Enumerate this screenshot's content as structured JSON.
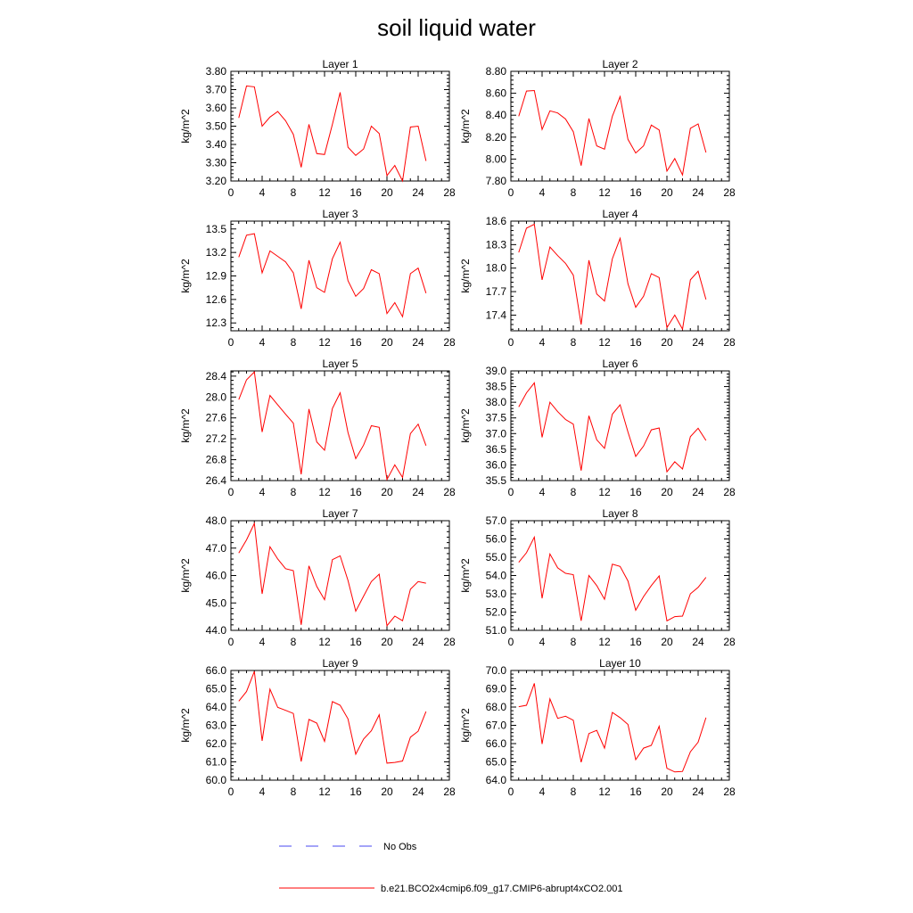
{
  "figure": {
    "title": "soil liquid water",
    "legend": [
      {
        "label": "No Obs",
        "color": "#4a4af0",
        "dash": "dashed"
      },
      {
        "label": "b.e21.BCO2x4cmip6.f09_g17.CMIP6-abrupt4xCO2.001",
        "color": "#ff0000",
        "dash": "solid"
      }
    ],
    "colors": {
      "series": "#ff0000",
      "no_obs": "#4a4af0",
      "axis": "#000000"
    }
  },
  "chart_data": [
    {
      "type": "line",
      "title": "Layer 1",
      "ylabel": "kg/m^2",
      "xlim": [
        0,
        28
      ],
      "xticks": [
        "0",
        "4",
        "8",
        "12",
        "16",
        "20",
        "24",
        "28"
      ],
      "ylim": [
        3.2,
        3.8
      ],
      "yticks": [
        "3.20",
        "3.30",
        "3.40",
        "3.50",
        "3.60",
        "3.70",
        "3.80"
      ],
      "x": [
        1,
        2,
        3,
        4,
        5,
        6,
        7,
        8,
        9,
        10,
        11,
        12,
        13,
        14,
        15,
        16,
        17,
        18,
        19,
        20,
        21,
        22,
        23,
        24,
        25
      ],
      "series": [
        {
          "name": "b.e21.BCO2x4cmip6.f09_g17.CMIP6-abrupt4xCO2.001",
          "values": [
            3.545,
            3.72,
            3.715,
            3.5,
            3.55,
            3.58,
            3.53,
            3.455,
            3.275,
            3.51,
            3.35,
            3.345,
            3.51,
            3.685,
            3.385,
            3.34,
            3.375,
            3.5,
            3.46,
            3.23,
            3.285,
            3.2,
            3.495,
            3.5,
            3.31
          ]
        }
      ]
    },
    {
      "type": "line",
      "title": "Layer 2",
      "ylabel": "kg/m^2",
      "xlim": [
        0,
        28
      ],
      "xticks": [
        "0",
        "4",
        "8",
        "12",
        "16",
        "20",
        "24",
        "28"
      ],
      "ylim": [
        7.8,
        8.8
      ],
      "yticks": [
        "7.80",
        "8.00",
        "8.20",
        "8.40",
        "8.60",
        "8.80"
      ],
      "x": [
        1,
        2,
        3,
        4,
        5,
        6,
        7,
        8,
        9,
        10,
        11,
        12,
        13,
        14,
        15,
        16,
        17,
        18,
        19,
        20,
        21,
        22,
        23,
        24,
        25
      ],
      "series": [
        {
          "name": "b.e21.BCO2x4cmip6.f09_g17.CMIP6-abrupt4xCO2.001",
          "values": [
            8.39,
            8.62,
            8.625,
            8.27,
            8.44,
            8.42,
            8.365,
            8.25,
            7.94,
            8.37,
            8.12,
            8.09,
            8.39,
            8.57,
            8.18,
            8.055,
            8.12,
            8.31,
            8.265,
            7.89,
            8.005,
            7.855,
            8.28,
            8.32,
            8.06
          ]
        }
      ]
    },
    {
      "type": "line",
      "title": "Layer 3",
      "ylabel": "kg/m^2",
      "xlim": [
        0,
        28
      ],
      "xticks": [
        "0",
        "4",
        "8",
        "12",
        "16",
        "20",
        "24",
        "28"
      ],
      "ylim": [
        12.2,
        13.6
      ],
      "yticks": [
        "12.3",
        "12.6",
        "12.9",
        "13.2",
        "13.5"
      ],
      "x": [
        1,
        2,
        3,
        4,
        5,
        6,
        7,
        8,
        9,
        10,
        11,
        12,
        13,
        14,
        15,
        16,
        17,
        18,
        19,
        20,
        21,
        22,
        23,
        24,
        25
      ],
      "series": [
        {
          "name": "b.e21.BCO2x4cmip6.f09_g17.CMIP6-abrupt4xCO2.001",
          "values": [
            13.14,
            13.42,
            13.44,
            12.94,
            13.22,
            13.15,
            13.08,
            12.94,
            12.48,
            13.1,
            12.75,
            12.69,
            13.12,
            13.33,
            12.84,
            12.64,
            12.74,
            12.98,
            12.93,
            12.42,
            12.56,
            12.38,
            12.93,
            13.0,
            12.68
          ]
        }
      ]
    },
    {
      "type": "line",
      "title": "Layer 4",
      "ylabel": "kg/m^2",
      "xlim": [
        0,
        28
      ],
      "xticks": [
        "0",
        "4",
        "8",
        "12",
        "16",
        "20",
        "24",
        "28"
      ],
      "ylim": [
        17.2,
        18.6
      ],
      "yticks": [
        "17.4",
        "17.7",
        "18.0",
        "18.3",
        "18.6"
      ],
      "x": [
        1,
        2,
        3,
        4,
        5,
        6,
        7,
        8,
        9,
        10,
        11,
        12,
        13,
        14,
        15,
        16,
        17,
        18,
        19,
        20,
        21,
        22,
        23,
        24,
        25
      ],
      "series": [
        {
          "name": "b.e21.BCO2x4cmip6.f09_g17.CMIP6-abrupt4xCO2.001",
          "values": [
            18.2,
            18.51,
            18.56,
            17.85,
            18.27,
            18.16,
            18.06,
            17.91,
            17.28,
            18.1,
            17.67,
            17.58,
            18.12,
            18.38,
            17.8,
            17.5,
            17.64,
            17.93,
            17.88,
            17.24,
            17.4,
            17.22,
            17.85,
            17.96,
            17.6
          ]
        }
      ]
    },
    {
      "type": "line",
      "title": "Layer 5",
      "ylabel": "kg/m^2",
      "xlim": [
        0,
        28
      ],
      "xticks": [
        "0",
        "4",
        "8",
        "12",
        "16",
        "20",
        "24",
        "28"
      ],
      "ylim": [
        26.4,
        28.5
      ],
      "yticks": [
        "26.4",
        "26.8",
        "27.2",
        "27.6",
        "28.0",
        "28.4"
      ],
      "x": [
        1,
        2,
        3,
        4,
        5,
        6,
        7,
        8,
        9,
        10,
        11,
        12,
        13,
        14,
        15,
        16,
        17,
        18,
        19,
        20,
        21,
        22,
        23,
        24,
        25
      ],
      "series": [
        {
          "name": "b.e21.BCO2x4cmip6.f09_g17.CMIP6-abrupt4xCO2.001",
          "values": [
            27.95,
            28.33,
            28.48,
            27.33,
            28.03,
            27.85,
            27.67,
            27.5,
            26.52,
            27.77,
            27.14,
            26.98,
            27.78,
            28.08,
            27.32,
            26.82,
            27.08,
            27.45,
            27.42,
            26.42,
            26.7,
            26.46,
            27.3,
            27.48,
            27.07
          ]
        }
      ]
    },
    {
      "type": "line",
      "title": "Layer 6",
      "ylabel": "kg/m^2",
      "xlim": [
        0,
        28
      ],
      "xticks": [
        "0",
        "4",
        "8",
        "12",
        "16",
        "20",
        "24",
        "28"
      ],
      "ylim": [
        35.5,
        39.0
      ],
      "yticks": [
        "35.5",
        "36.0",
        "36.5",
        "37.0",
        "37.5",
        "38.0",
        "38.5",
        "39.0"
      ],
      "x": [
        1,
        2,
        3,
        4,
        5,
        6,
        7,
        8,
        9,
        10,
        11,
        12,
        13,
        14,
        15,
        16,
        17,
        18,
        19,
        20,
        21,
        22,
        23,
        24,
        25
      ],
      "series": [
        {
          "name": "b.e21.BCO2x4cmip6.f09_g17.CMIP6-abrupt4xCO2.001",
          "values": [
            37.85,
            38.3,
            38.62,
            36.88,
            38.0,
            37.7,
            37.45,
            37.3,
            35.82,
            37.57,
            36.8,
            36.53,
            37.62,
            37.92,
            37.05,
            36.27,
            36.6,
            37.12,
            37.18,
            35.78,
            36.1,
            35.87,
            36.9,
            37.17,
            36.78
          ]
        }
      ]
    },
    {
      "type": "line",
      "title": "Layer 7",
      "ylabel": "kg/m^2",
      "xlim": [
        0,
        28
      ],
      "xticks": [
        "0",
        "4",
        "8",
        "12",
        "16",
        "20",
        "24",
        "28"
      ],
      "ylim": [
        44.0,
        48.0
      ],
      "yticks": [
        "44.0",
        "45.0",
        "46.0",
        "47.0",
        "48.0"
      ],
      "x": [
        1,
        2,
        3,
        4,
        5,
        6,
        7,
        8,
        9,
        10,
        11,
        12,
        13,
        14,
        15,
        16,
        17,
        18,
        19,
        20,
        21,
        22,
        23,
        24,
        25
      ],
      "series": [
        {
          "name": "b.e21.BCO2x4cmip6.f09_g17.CMIP6-abrupt4xCO2.001",
          "values": [
            46.82,
            47.3,
            47.9,
            45.33,
            47.05,
            46.6,
            46.25,
            46.18,
            44.2,
            46.35,
            45.6,
            45.12,
            46.58,
            46.72,
            45.82,
            44.7,
            45.25,
            45.78,
            46.05,
            44.17,
            44.52,
            44.35,
            45.5,
            45.78,
            45.72
          ]
        }
      ]
    },
    {
      "type": "line",
      "title": "Layer 8",
      "ylabel": "kg/m^2",
      "xlim": [
        0,
        28
      ],
      "xticks": [
        "0",
        "4",
        "8",
        "12",
        "16",
        "20",
        "24",
        "28"
      ],
      "ylim": [
        51.0,
        57.0
      ],
      "yticks": [
        "51.0",
        "52.0",
        "53.0",
        "54.0",
        "55.0",
        "56.0",
        "57.0"
      ],
      "x": [
        1,
        2,
        3,
        4,
        5,
        6,
        7,
        8,
        9,
        10,
        11,
        12,
        13,
        14,
        15,
        16,
        17,
        18,
        19,
        20,
        21,
        22,
        23,
        24,
        25
      ],
      "series": [
        {
          "name": "b.e21.BCO2x4cmip6.f09_g17.CMIP6-abrupt4xCO2.001",
          "values": [
            54.72,
            55.25,
            56.1,
            52.75,
            55.18,
            54.42,
            54.12,
            54.05,
            51.52,
            54.0,
            53.45,
            52.7,
            54.62,
            54.5,
            53.7,
            52.1,
            52.85,
            53.45,
            53.98,
            51.52,
            51.75,
            51.78,
            53.0,
            53.35,
            53.9
          ]
        }
      ]
    },
    {
      "type": "line",
      "title": "Layer 9",
      "ylabel": "kg/m^2",
      "xlim": [
        0,
        28
      ],
      "xticks": [
        "0",
        "4",
        "8",
        "12",
        "16",
        "20",
        "24",
        "28"
      ],
      "ylim": [
        60.0,
        66.0
      ],
      "yticks": [
        "60.0",
        "61.0",
        "62.0",
        "63.0",
        "64.0",
        "65.0",
        "66.0"
      ],
      "x": [
        1,
        2,
        3,
        4,
        5,
        6,
        7,
        8,
        9,
        10,
        11,
        12,
        13,
        14,
        15,
        16,
        17,
        18,
        19,
        20,
        21,
        22,
        23,
        24,
        25
      ],
      "series": [
        {
          "name": "b.e21.BCO2x4cmip6.f09_g17.CMIP6-abrupt4xCO2.001",
          "values": [
            64.32,
            64.85,
            65.95,
            62.15,
            64.98,
            63.98,
            63.82,
            63.65,
            61.02,
            63.32,
            63.12,
            62.12,
            64.3,
            64.1,
            63.35,
            61.42,
            62.25,
            62.7,
            63.58,
            60.93,
            60.97,
            61.05,
            62.35,
            62.68,
            63.75
          ]
        }
      ]
    },
    {
      "type": "line",
      "title": "Layer 10",
      "ylabel": "kg/m^2",
      "xlim": [
        0,
        28
      ],
      "xticks": [
        "0",
        "4",
        "8",
        "12",
        "16",
        "20",
        "24",
        "28"
      ],
      "ylim": [
        64.0,
        70.0
      ],
      "yticks": [
        "64.0",
        "65.0",
        "66.0",
        "67.0",
        "68.0",
        "69.0",
        "70.0"
      ],
      "x": [
        1,
        2,
        3,
        4,
        5,
        6,
        7,
        8,
        9,
        10,
        11,
        12,
        13,
        14,
        15,
        16,
        17,
        18,
        19,
        20,
        21,
        22,
        23,
        24,
        25
      ],
      "series": [
        {
          "name": "b.e21.BCO2x4cmip6.f09_g17.CMIP6-abrupt4xCO2.001",
          "values": [
            68.02,
            68.1,
            69.3,
            65.98,
            68.45,
            67.38,
            67.5,
            67.28,
            64.98,
            66.55,
            66.72,
            65.75,
            67.7,
            67.42,
            67.05,
            65.12,
            65.75,
            65.9,
            66.95,
            64.65,
            64.45,
            64.48,
            65.55,
            66.08,
            67.42
          ]
        }
      ]
    }
  ]
}
